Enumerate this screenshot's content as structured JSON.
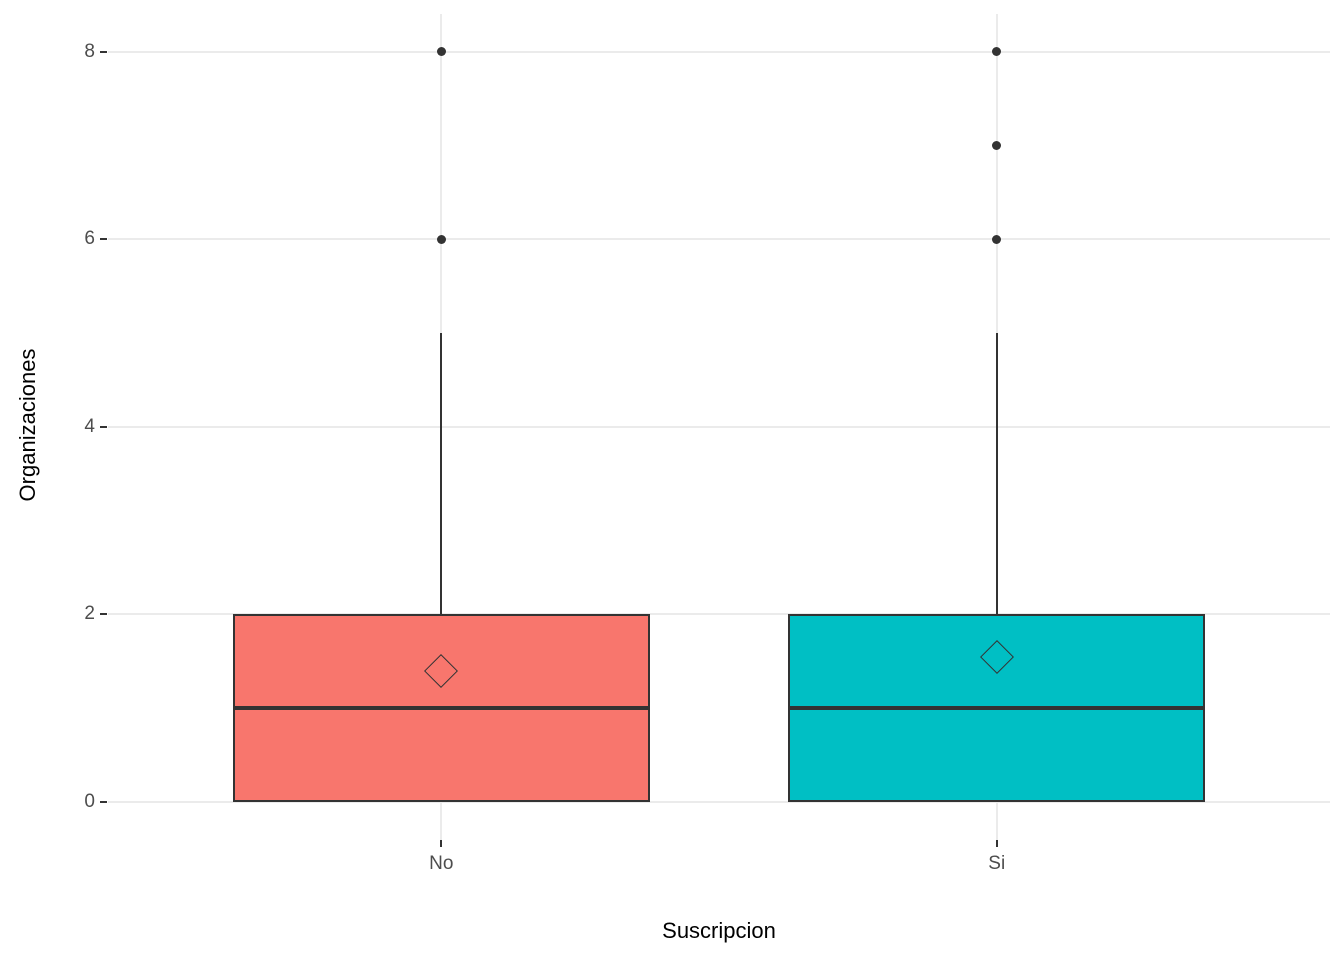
{
  "chart_data": {
    "type": "boxplot",
    "title": "",
    "xlabel": "Suscripcion",
    "ylabel": "Organizaciones",
    "ylim": [
      0,
      8
    ],
    "y_ticks": [
      0,
      2,
      4,
      6,
      8
    ],
    "categories": [
      "No",
      "Si"
    ],
    "grid": "major horizontal and vertical light-gray lines on white background, no minor gridlines, no panel border",
    "legend": "none",
    "series": [
      {
        "name": "No",
        "fill": "#F8766D",
        "q1": 0,
        "median": 1,
        "q3": 2,
        "whisker_low": 0,
        "whisker_high": 5,
        "mean": 1.4,
        "outliers": [
          6,
          8
        ]
      },
      {
        "name": "Si",
        "fill": "#00BFC4",
        "q1": 0,
        "median": 1,
        "q3": 2,
        "whisker_low": 0,
        "whisker_high": 5,
        "mean": 1.55,
        "outliers": [
          6,
          7,
          8
        ]
      }
    ]
  },
  "colors": {
    "stroke": "#333333",
    "gridline": "#EBEBEB",
    "tick_label": "#4D4D4D",
    "axis_title": "#000000",
    "background": "#FFFFFF"
  }
}
